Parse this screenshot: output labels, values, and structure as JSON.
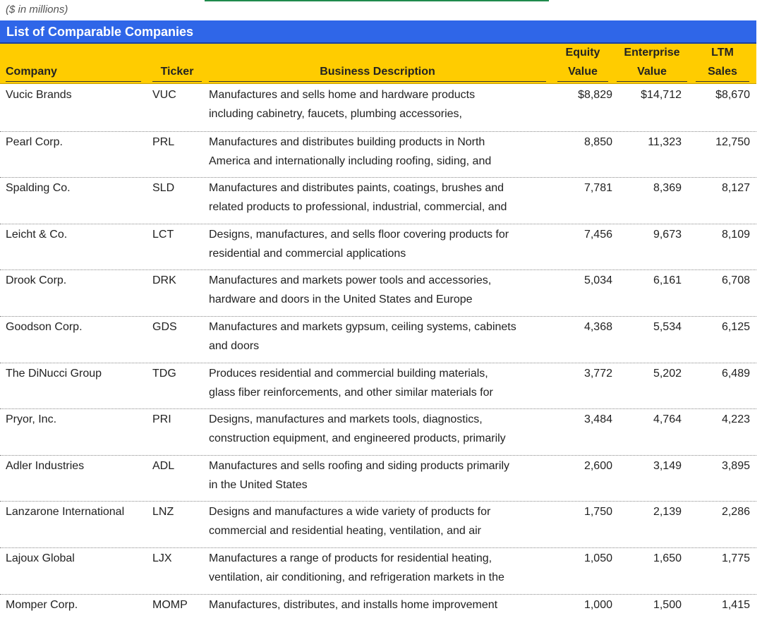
{
  "note": "($ in millions)",
  "title": "List of Comparable Companies",
  "table": {
    "headers": [
      "Company",
      "Ticker",
      "Business Description",
      "Equity Value",
      "Enterprise Value",
      "LTM Sales"
    ],
    "rows": [
      {
        "company": "Vucic Brands",
        "ticker": "VUC",
        "description": [
          "Manufactures and sells home and hardware products",
          "including cabinetry, faucets, plumbing accessories,"
        ],
        "equity_value": "$8,829",
        "enterprise_value": "$14,712",
        "ltm_sales": "$8,670"
      },
      {
        "company": "Pearl Corp.",
        "ticker": "PRL",
        "description": [
          "Manufactures and distributes building products in North",
          "America and internationally including roofing, siding, and"
        ],
        "equity_value": "8,850",
        "enterprise_value": "11,323",
        "ltm_sales": "12,750"
      },
      {
        "company": "Spalding Co.",
        "ticker": "SLD",
        "description": [
          "Manufactures and distributes paints, coatings, brushes and",
          "related products to professional, industrial, commercial, and"
        ],
        "equity_value": "7,781",
        "enterprise_value": "8,369",
        "ltm_sales": "8,127"
      },
      {
        "company": "Leicht & Co.",
        "ticker": "LCT",
        "description": [
          "Designs, manufactures, and sells floor covering products for",
          "residential and commercial applications"
        ],
        "equity_value": "7,456",
        "enterprise_value": "9,673",
        "ltm_sales": "8,109"
      },
      {
        "company": "Drook Corp.",
        "ticker": "DRK",
        "description": [
          "Manufactures and markets power tools and accessories,",
          "hardware and doors in the United States and Europe"
        ],
        "equity_value": "5,034",
        "enterprise_value": "6,161",
        "ltm_sales": "6,708"
      },
      {
        "company": "Goodson Corp.",
        "ticker": "GDS",
        "description": [
          "Manufactures and markets gypsum, ceiling systems, cabinets",
          "and doors"
        ],
        "equity_value": "4,368",
        "enterprise_value": "5,534",
        "ltm_sales": "6,125"
      },
      {
        "company": "The DiNucci Group",
        "ticker": "TDG",
        "description": [
          "Produces residential and commercial building materials,",
          "glass fiber reinforcements, and other similar materials for"
        ],
        "equity_value": "3,772",
        "enterprise_value": "5,202",
        "ltm_sales": "6,489"
      },
      {
        "company": "Pryor, Inc.",
        "ticker": "PRI",
        "description": [
          "Designs, manufactures and markets tools, diagnostics,",
          "construction equipment, and engineered products, primarily"
        ],
        "equity_value": "3,484",
        "enterprise_value": "4,764",
        "ltm_sales": "4,223"
      },
      {
        "company": "Adler Industries",
        "ticker": "ADL",
        "description": [
          "Manufactures and sells roofing and siding products primarily",
          "in the United States"
        ],
        "equity_value": "2,600",
        "enterprise_value": "3,149",
        "ltm_sales": "3,895"
      },
      {
        "company": "Lanzarone International",
        "ticker": "LNZ",
        "description": [
          "Designs and manufactures a wide variety of products for",
          "commercial and residential heating, ventilation, and air"
        ],
        "equity_value": "1,750",
        "enterprise_value": "2,139",
        "ltm_sales": "2,286"
      },
      {
        "company": "Lajoux Global",
        "ticker": "LJX",
        "description": [
          "Manufactures a range of products for residential heating,",
          "ventilation, air conditioning, and refrigeration markets in the"
        ],
        "equity_value": "1,050",
        "enterprise_value": "1,650",
        "ltm_sales": "1,775"
      },
      {
        "company": "Momper Corp.",
        "ticker": "MOMP",
        "description": [
          "Manufactures, distributes, and installs home improvement"
        ],
        "equity_value": "1,000",
        "enterprise_value": "1,500",
        "ltm_sales": "1,415"
      }
    ]
  }
}
